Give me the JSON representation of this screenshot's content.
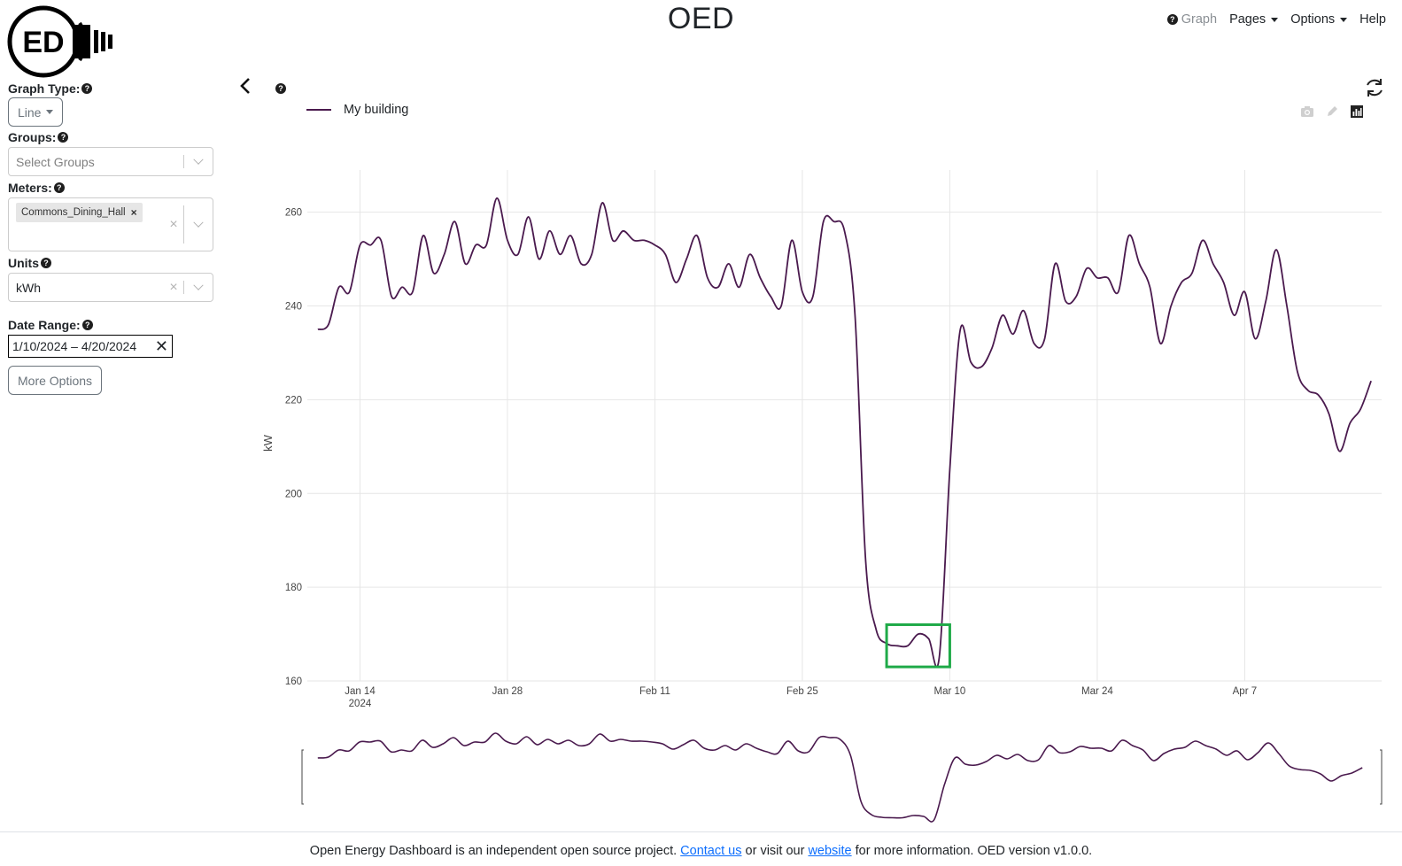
{
  "header": {
    "title": "OED",
    "logo_text": "ED",
    "nav": {
      "graph": "Graph",
      "pages": "Pages",
      "options": "Options",
      "help": "Help"
    }
  },
  "sidebar": {
    "graph_type_label": "Graph Type:",
    "graph_type_value": "Line",
    "groups_label": "Groups:",
    "groups_placeholder": "Select Groups",
    "meters_label": "Meters:",
    "meters_selected": [
      "Commons_Dining_Hall"
    ],
    "units_label": "Units",
    "units_value": "kWh",
    "date_range_label": "Date Range:",
    "date_range_value": "1/10/2024 – 4/20/2024",
    "more_options": "More Options"
  },
  "chart_data": {
    "type": "line",
    "series": [
      {
        "name": "My building",
        "color": "#4a1a4e",
        "points": [
          [
            "2024-01-10",
            235
          ],
          [
            "2024-01-11",
            236
          ],
          [
            "2024-01-12",
            244
          ],
          [
            "2024-01-13",
            243
          ],
          [
            "2024-01-14",
            253
          ],
          [
            "2024-01-15",
            253
          ],
          [
            "2024-01-16",
            254
          ],
          [
            "2024-01-17",
            242
          ],
          [
            "2024-01-18",
            244
          ],
          [
            "2024-01-19",
            243
          ],
          [
            "2024-01-20",
            255
          ],
          [
            "2024-01-21",
            247
          ],
          [
            "2024-01-22",
            251
          ],
          [
            "2024-01-23",
            258
          ],
          [
            "2024-01-24",
            249
          ],
          [
            "2024-01-25",
            253
          ],
          [
            "2024-01-26",
            253
          ],
          [
            "2024-01-27",
            263
          ],
          [
            "2024-01-28",
            254
          ],
          [
            "2024-01-29",
            251
          ],
          [
            "2024-01-30",
            259
          ],
          [
            "2024-01-31",
            250
          ],
          [
            "2024-02-01",
            256
          ],
          [
            "2024-02-02",
            251
          ],
          [
            "2024-02-03",
            255
          ],
          [
            "2024-02-04",
            249
          ],
          [
            "2024-02-05",
            251
          ],
          [
            "2024-02-06",
            262
          ],
          [
            "2024-02-07",
            254
          ],
          [
            "2024-02-08",
            256
          ],
          [
            "2024-02-09",
            254
          ],
          [
            "2024-02-10",
            254
          ],
          [
            "2024-02-11",
            253
          ],
          [
            "2024-02-12",
            251
          ],
          [
            "2024-02-13",
            245
          ],
          [
            "2024-02-14",
            250
          ],
          [
            "2024-02-15",
            255
          ],
          [
            "2024-02-16",
            246
          ],
          [
            "2024-02-17",
            244
          ],
          [
            "2024-02-18",
            249
          ],
          [
            "2024-02-19",
            244
          ],
          [
            "2024-02-20",
            251
          ],
          [
            "2024-02-21",
            246
          ],
          [
            "2024-02-22",
            242
          ],
          [
            "2024-02-23",
            240
          ],
          [
            "2024-02-24",
            254
          ],
          [
            "2024-02-25",
            243
          ],
          [
            "2024-02-26",
            242
          ],
          [
            "2024-02-27",
            258
          ],
          [
            "2024-02-28",
            258
          ],
          [
            "2024-02-29",
            256
          ],
          [
            "2024-03-01",
            238
          ],
          [
            "2024-03-02",
            186
          ],
          [
            "2024-03-03",
            171
          ],
          [
            "2024-03-04",
            168
          ],
          [
            "2024-03-05",
            167.5
          ],
          [
            "2024-03-06",
            167.5
          ],
          [
            "2024-03-07",
            170
          ],
          [
            "2024-03-08",
            169
          ],
          [
            "2024-03-09",
            165
          ],
          [
            "2024-03-10",
            205
          ],
          [
            "2024-03-11",
            235
          ],
          [
            "2024-03-12",
            228
          ],
          [
            "2024-03-13",
            227
          ],
          [
            "2024-03-14",
            231
          ],
          [
            "2024-03-15",
            238
          ],
          [
            "2024-03-16",
            234
          ],
          [
            "2024-03-17",
            239
          ],
          [
            "2024-03-18",
            232
          ],
          [
            "2024-03-19",
            233
          ],
          [
            "2024-03-20",
            249
          ],
          [
            "2024-03-21",
            241
          ],
          [
            "2024-03-22",
            242
          ],
          [
            "2024-03-23",
            248
          ],
          [
            "2024-03-24",
            246
          ],
          [
            "2024-03-25",
            246
          ],
          [
            "2024-03-26",
            243
          ],
          [
            "2024-03-27",
            255
          ],
          [
            "2024-03-28",
            249
          ],
          [
            "2024-03-29",
            244
          ],
          [
            "2024-03-30",
            232
          ],
          [
            "2024-03-31",
            240
          ],
          [
            "2024-04-01",
            245
          ],
          [
            "2024-04-02",
            247
          ],
          [
            "2024-04-03",
            254
          ],
          [
            "2024-04-04",
            249
          ],
          [
            "2024-04-05",
            245
          ],
          [
            "2024-04-06",
            238
          ],
          [
            "2024-04-07",
            243
          ],
          [
            "2024-04-08",
            233
          ],
          [
            "2024-04-09",
            241
          ],
          [
            "2024-04-10",
            252
          ],
          [
            "2024-04-11",
            240
          ],
          [
            "2024-04-12",
            226
          ],
          [
            "2024-04-13",
            222
          ],
          [
            "2024-04-14",
            221
          ],
          [
            "2024-04-15",
            217
          ],
          [
            "2024-04-16",
            209
          ],
          [
            "2024-04-17",
            215
          ],
          [
            "2024-04-18",
            218
          ],
          [
            "2024-04-19",
            224
          ]
        ]
      }
    ],
    "ylabel": "kW",
    "ylim": [
      160,
      269
    ],
    "yticks": [
      160,
      180,
      200,
      220,
      240,
      260
    ],
    "xlim": [
      "2024-01-09",
      "2024-04-20"
    ],
    "xticks": [
      {
        "date": "2024-01-14",
        "label": "Jan 14",
        "sublabel": "2024"
      },
      {
        "date": "2024-01-28",
        "label": "Jan 28"
      },
      {
        "date": "2024-02-11",
        "label": "Feb 11"
      },
      {
        "date": "2024-02-25",
        "label": "Feb 25"
      },
      {
        "date": "2024-03-10",
        "label": "Mar 10"
      },
      {
        "date": "2024-03-24",
        "label": "Mar 24"
      },
      {
        "date": "2024-04-07",
        "label": "Apr 7"
      }
    ],
    "grid": true,
    "legend_position": "top-left",
    "range_slider": true,
    "highlight_box": {
      "x": [
        "2024-03-04",
        "2024-03-10"
      ],
      "y": [
        163,
        172
      ],
      "color": "#1faa48"
    }
  },
  "footer": {
    "text_before": "Open Energy Dashboard is an independent open source project. ",
    "contact_link": "Contact us",
    "text_middle": " or visit our ",
    "website_link": "website",
    "text_after": " for more information. OED version v1.0.0."
  }
}
